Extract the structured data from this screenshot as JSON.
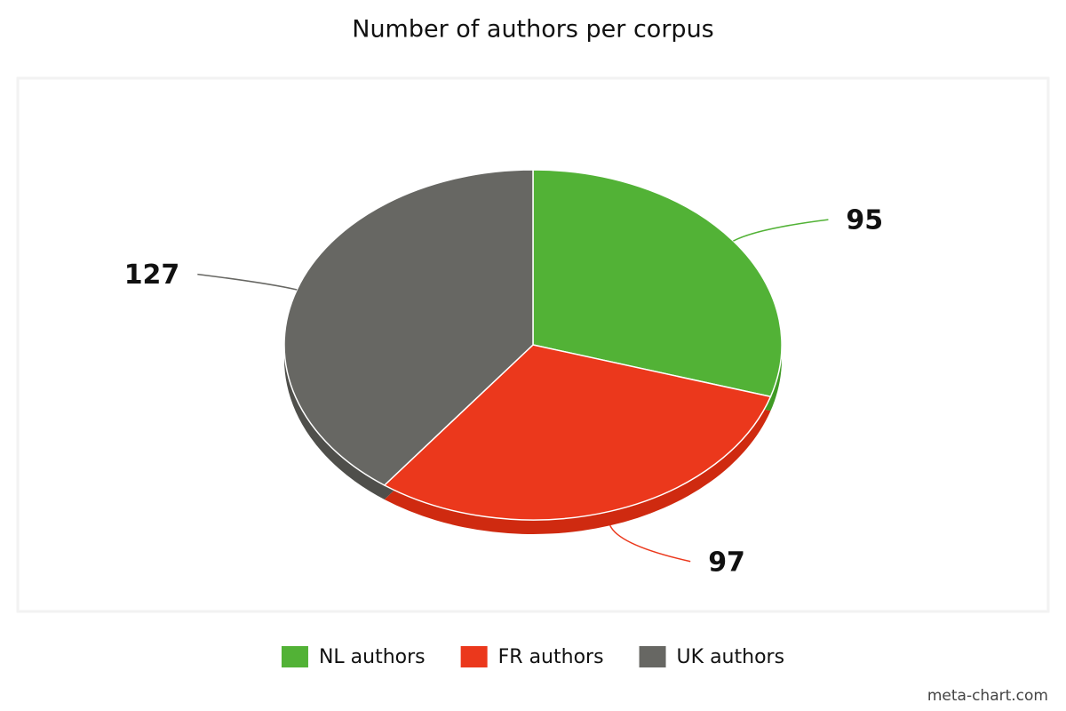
{
  "chart_data": {
    "type": "pie",
    "title": "Number of authors per corpus",
    "categories": [
      "NL authors",
      "FR authors",
      "UK authors"
    ],
    "values": [
      95,
      97,
      127
    ],
    "colors": [
      "#52b236",
      "#eb381c",
      "#676763"
    ],
    "side_colors": [
      "#3f9a25",
      "#cf2a10",
      "#4f4f4b"
    ],
    "legend": "bottom",
    "credit": "meta-chart.com"
  }
}
